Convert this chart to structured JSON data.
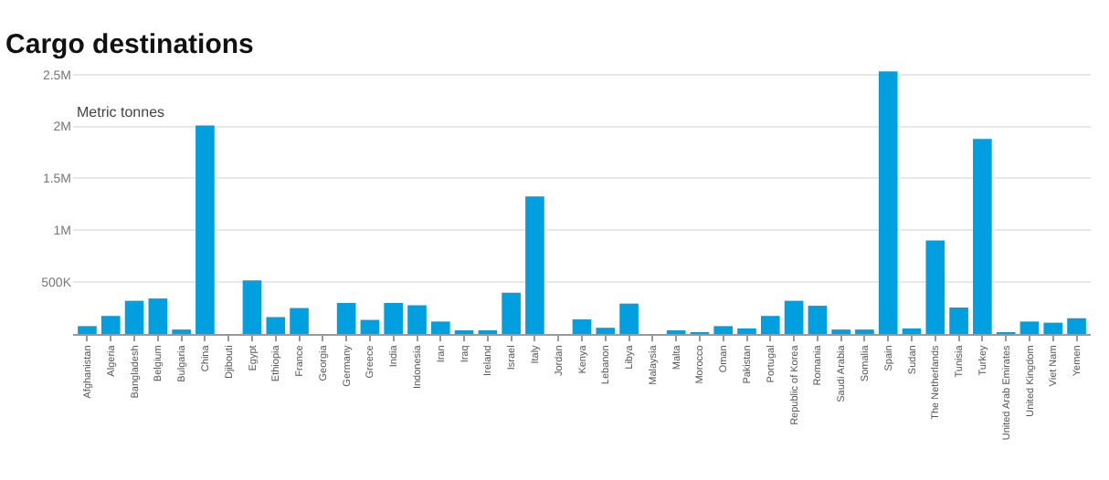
{
  "chart_data": {
    "type": "bar",
    "title": "Cargo destinations",
    "subtitle": "Metric tonnes",
    "categories": [
      "Afghanistan",
      "Algeria",
      "Bangladesh",
      "Belgium",
      "Bulgaria",
      "China",
      "Djibouti",
      "Egypt",
      "Ethiopia",
      "France",
      "Georgia",
      "Germany",
      "Greece",
      "India",
      "Indonesia",
      "Iran",
      "Iraq",
      "Ireland",
      "Israel",
      "Italy",
      "Jordan",
      "Kenya",
      "Lebanon",
      "Libya",
      "Malaysia",
      "Malta",
      "Morocco",
      "Oman",
      "Pakistan",
      "Portugal",
      "Republic of Korea",
      "Romania",
      "Saudi Arabia",
      "Somalia",
      "Spain",
      "Sudan",
      "The Netherlands",
      "Tunisia",
      "Turkey",
      "United Arab Emirates",
      "United Kingdom",
      "Viet Nam",
      "Yemen"
    ],
    "values": [
      76000,
      174000,
      320000,
      342000,
      43000,
      2010000,
      0,
      516000,
      163000,
      250000,
      0,
      299000,
      136000,
      299000,
      277000,
      120000,
      22000,
      22000,
      397000,
      1326000,
      0,
      141000,
      60000,
      293000,
      0,
      22000,
      11000,
      76000,
      54000,
      174000,
      320000,
      272000,
      43000,
      43000,
      2530000,
      54000,
      902000,
      255000,
      1880000,
      11000,
      120000,
      109000,
      152000
    ],
    "color": "#009fdf",
    "ylim": [
      0,
      2550000
    ],
    "yticks": [
      {
        "value": 500000,
        "label": "500K"
      },
      {
        "value": 1000000,
        "label": "1M"
      },
      {
        "value": 1500000,
        "label": "1.5M"
      },
      {
        "value": 2000000,
        "label": "2M"
      },
      {
        "value": 2500000,
        "label": "2.5M"
      }
    ],
    "grid": "y"
  }
}
